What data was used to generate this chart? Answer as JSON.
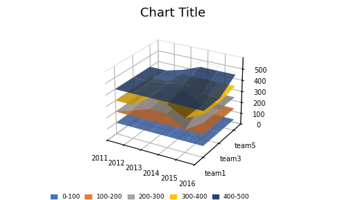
{
  "title": "Chart Title",
  "years": [
    2011,
    2012,
    2013,
    2014,
    2015,
    2016
  ],
  "teams": [
    "team1",
    "team3",
    "team5"
  ],
  "z_data": {
    "team1": [
      200,
      250,
      400,
      380,
      200,
      370
    ],
    "team3": [
      210,
      300,
      420,
      450,
      300,
      360
    ],
    "team5": [
      200,
      270,
      440,
      550,
      540,
      520
    ]
  },
  "legend_labels": [
    "0-100",
    "100-200",
    "200-300",
    "300-400",
    "400-500"
  ],
  "legend_colors": [
    "#4472C4",
    "#ED7D31",
    "#A5A5A5",
    "#FFC000",
    "#264478"
  ],
  "band_colors": {
    "0-100": "#4472C4",
    "100-200": "#ED7D31",
    "200-300": "#A5A5A5",
    "300-400": "#FFC000",
    "400-500": "#264478"
  },
  "elev": 25,
  "azim": -60,
  "zlim": [
    0,
    600
  ],
  "zticks": [
    0,
    100,
    200,
    300,
    400,
    500
  ],
  "background_color": "#FFFFFF"
}
